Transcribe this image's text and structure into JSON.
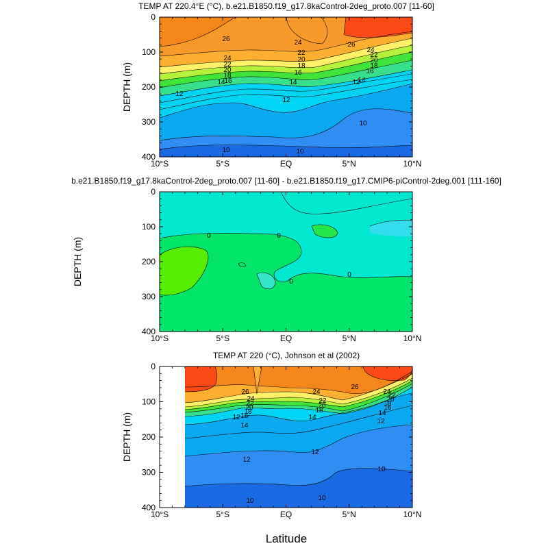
{
  "chart_data": [
    {
      "type": "contour",
      "title": "TEMP AT 220.4°E (°C), b.e21.B1850.f19_g17.8kaControl-2deg_proto.007 [11-60]",
      "ylabel": "DEPTH (m)",
      "xlim": [
        -10,
        10
      ],
      "ylim": [
        400,
        0
      ],
      "x_ticks": [
        "10°S",
        "5°S",
        "EQ",
        "5°N",
        "10°N"
      ],
      "y_ticks": [
        "0",
        "100",
        "200",
        "300",
        "400"
      ],
      "contour_labels": [
        "26",
        "24",
        "22",
        "20",
        "18",
        "16",
        "14",
        "12",
        "10",
        "26",
        "24",
        "22",
        "20",
        "18",
        "16",
        "14",
        "12",
        "24",
        "22",
        "20",
        "18",
        "16",
        "14",
        "12",
        "10",
        "10"
      ]
    },
    {
      "type": "contour",
      "title": "b.e21.B1850.f19_g17.8kaControl-2deg_proto.007 [11-60] - b.e21.B1850.f19_g17.CMIP6-piControl-2deg.001 [111-160]",
      "ylabel": "DEPTH (m)",
      "xlim": [
        -10,
        10
      ],
      "ylim": [
        400,
        0
      ],
      "x_ticks": [
        "10°S",
        "5°S",
        "EQ",
        "5°N",
        "10°N"
      ],
      "y_ticks": [
        "0",
        "100",
        "200",
        "300",
        "400"
      ],
      "contour_labels": [
        "0",
        "0",
        "0",
        "0"
      ]
    },
    {
      "type": "contour",
      "title": "TEMP AT 220 (°C), Johnson et al (2002)",
      "ylabel": "DEPTH (m)",
      "xlabel": "Latitude",
      "xlim": [
        -10,
        10
      ],
      "ylim": [
        400,
        0
      ],
      "x_ticks": [
        "10°S",
        "5°S",
        "EQ",
        "5°N",
        "10°N"
      ],
      "y_ticks": [
        "0",
        "100",
        "200",
        "300",
        "400"
      ],
      "contour_labels": [
        "26",
        "24",
        "22",
        "20",
        "18",
        "16",
        "14",
        "12",
        "12",
        "10",
        "24",
        "22",
        "20",
        "18",
        "14",
        "12",
        "10",
        "26",
        "24",
        "22",
        "20",
        "18",
        "16",
        "14",
        "12",
        "10"
      ]
    }
  ]
}
